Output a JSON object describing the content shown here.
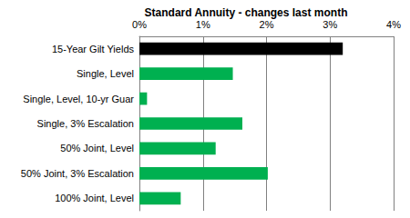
{
  "chart_data": {
    "type": "bar",
    "orientation": "horizontal",
    "title": "Standard Annuity - changes last month",
    "categories": [
      "15-Year Gilt Yields",
      "Single, Level",
      "Single, Level, 10-yr Guar",
      "Single, 3% Escalation",
      "50% Joint, Level",
      "50% Joint, 3% Escalation",
      "100% Joint, Level"
    ],
    "values": [
      3.2,
      1.47,
      0.12,
      1.62,
      1.2,
      2.02,
      0.65
    ],
    "colors": [
      "#000000",
      "#00b050",
      "#00b050",
      "#00b050",
      "#00b050",
      "#00b050",
      "#00b050"
    ],
    "xlim": [
      0,
      4
    ],
    "xticks": [
      {
        "value": 0,
        "label": "0%"
      },
      {
        "value": 1,
        "label": "1%"
      },
      {
        "value": 2,
        "label": "2%"
      },
      {
        "value": 3,
        "label": "3%"
      },
      {
        "value": 4,
        "label": "4%"
      }
    ],
    "grid": true
  }
}
